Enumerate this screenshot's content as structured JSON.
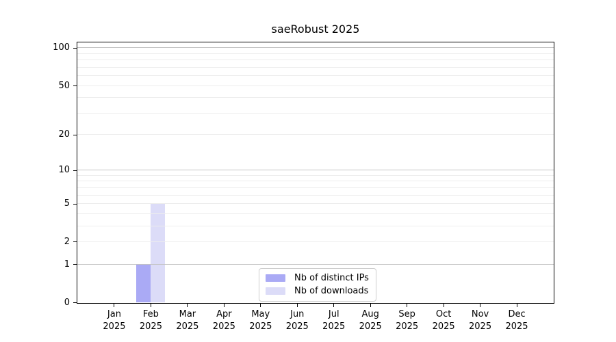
{
  "chart_data": {
    "type": "bar",
    "title": "saeRobust 2025",
    "categories": [
      "Jan",
      "Feb",
      "Mar",
      "Apr",
      "May",
      "Jun",
      "Jul",
      "Aug",
      "Sep",
      "Oct",
      "Nov",
      "Dec"
    ],
    "x_tick_second_line": "2025",
    "series": [
      {
        "name": "Nb of distinct IPs",
        "color": "#aaaaf5",
        "values": [
          0,
          1,
          0,
          0,
          0,
          0,
          0,
          0,
          0,
          0,
          0,
          0
        ]
      },
      {
        "name": "Nb of downloads",
        "color": "#dcdcf8",
        "values": [
          0,
          5,
          0,
          0,
          0,
          0,
          0,
          0,
          0,
          0,
          0,
          0
        ]
      }
    ],
    "yscale": "log1p",
    "ylim": [
      0,
      110.5
    ],
    "y_tick_labels": [
      0,
      1,
      2,
      5,
      10,
      20,
      50,
      100
    ],
    "y_major_gridlines": [
      1,
      10,
      100
    ],
    "y_minor_gridlines": [
      2,
      3,
      4,
      5,
      6,
      7,
      8,
      9,
      20,
      30,
      40,
      50,
      60,
      70,
      80,
      90
    ],
    "xlabel": "",
    "ylabel": "",
    "grid": true,
    "legend_position": "bottom-center",
    "colors": {
      "axis": "#000000",
      "major_grid": "#c3c3c3",
      "minor_grid": "#ededed",
      "background": "#ffffff",
      "legend_border": "#cccccc"
    }
  }
}
